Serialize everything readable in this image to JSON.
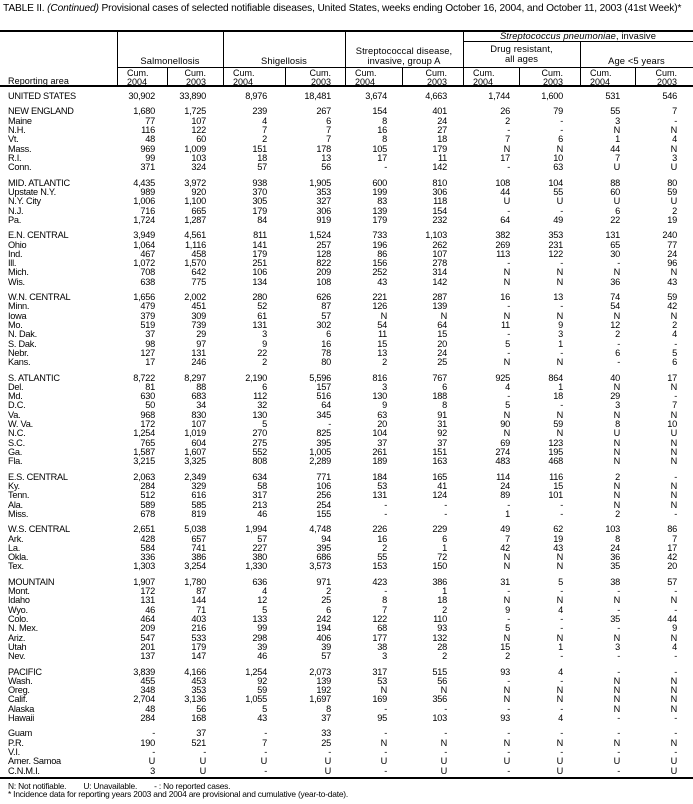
{
  "title": {
    "prefix": "TABLE II. ",
    "continued": "(Continued)",
    "text": " Provisional cases of selected notifiable diseases, United States, weeks ending October 16, 2004, and October 11, 2003 (41st Week)*"
  },
  "header": {
    "reporting_area": "Reporting area",
    "salmonellosis": "Salmonellosis",
    "shigellosis": "Shigellosis",
    "strep_a_line1": "Streptococcal disease,",
    "strep_a_line2": "invasive, group A",
    "spn_italic": "Streptococcus pneumoniae",
    "spn_rest": ", invasive",
    "drug_line1": "Drug resistant,",
    "drug_line2": "all ages",
    "age": "Age <5 years",
    "sub": [
      {
        "label": "Cum.",
        "year": "2004"
      },
      {
        "label": "Cum.",
        "year": "2003"
      },
      {
        "label": "Cum.",
        "year": "2004"
      },
      {
        "label": "Cum.",
        "year": "2003"
      },
      {
        "label": "Cum.",
        "year": "2004"
      },
      {
        "label": "Cum.",
        "year": "2003"
      },
      {
        "label": "Cum.",
        "year": "2004"
      },
      {
        "label": "Cum.",
        "year": "2003"
      },
      {
        "label": "Cum.",
        "year": "2004"
      },
      {
        "label": "Cum.",
        "year": "2003"
      }
    ]
  },
  "table": {
    "groups": [
      {
        "rows": [
          [
            "UNITED STATES",
            "30,902",
            "33,890",
            "8,976",
            "18,481",
            "3,674",
            "4,663",
            "1,744",
            "1,600",
            "531",
            "546"
          ]
        ]
      },
      {
        "rows": [
          [
            "NEW ENGLAND",
            "1,680",
            "1,725",
            "239",
            "267",
            "154",
            "401",
            "26",
            "79",
            "55",
            "7"
          ],
          [
            "Maine",
            "77",
            "107",
            "4",
            "6",
            "8",
            "24",
            "2",
            "-",
            "3",
            "-"
          ],
          [
            "N.H.",
            "116",
            "122",
            "7",
            "7",
            "16",
            "27",
            "-",
            "-",
            "N",
            "N"
          ],
          [
            "Vt.",
            "48",
            "60",
            "2",
            "7",
            "8",
            "18",
            "7",
            "6",
            "1",
            "4"
          ],
          [
            "Mass.",
            "969",
            "1,009",
            "151",
            "178",
            "105",
            "179",
            "N",
            "N",
            "44",
            "N"
          ],
          [
            "R.I.",
            "99",
            "103",
            "18",
            "13",
            "17",
            "11",
            "17",
            "10",
            "7",
            "3"
          ],
          [
            "Conn.",
            "371",
            "324",
            "57",
            "56",
            "-",
            "142",
            "-",
            "63",
            "U",
            "U"
          ]
        ]
      },
      {
        "rows": [
          [
            "MID. ATLANTIC",
            "4,435",
            "3,972",
            "938",
            "1,905",
            "600",
            "810",
            "108",
            "104",
            "88",
            "80"
          ],
          [
            "Upstate N.Y.",
            "989",
            "920",
            "370",
            "353",
            "199",
            "306",
            "44",
            "55",
            "60",
            "59"
          ],
          [
            "N.Y. City",
            "1,006",
            "1,100",
            "305",
            "327",
            "83",
            "118",
            "U",
            "U",
            "U",
            "U"
          ],
          [
            "N.J.",
            "716",
            "665",
            "179",
            "306",
            "139",
            "154",
            "-",
            "-",
            "6",
            "2"
          ],
          [
            "Pa.",
            "1,724",
            "1,287",
            "84",
            "919",
            "179",
            "232",
            "64",
            "49",
            "22",
            "19"
          ]
        ]
      },
      {
        "rows": [
          [
            "E.N. CENTRAL",
            "3,949",
            "4,561",
            "811",
            "1,524",
            "733",
            "1,103",
            "382",
            "353",
            "131",
            "240"
          ],
          [
            "Ohio",
            "1,064",
            "1,116",
            "141",
            "257",
            "196",
            "262",
            "269",
            "231",
            "65",
            "77"
          ],
          [
            "Ind.",
            "467",
            "458",
            "179",
            "128",
            "86",
            "107",
            "113",
            "122",
            "30",
            "24"
          ],
          [
            "Ill.",
            "1,072",
            "1,570",
            "251",
            "822",
            "156",
            "278",
            "-",
            "-",
            "-",
            "96"
          ],
          [
            "Mich.",
            "708",
            "642",
            "106",
            "209",
            "252",
            "314",
            "N",
            "N",
            "N",
            "N"
          ],
          [
            "Wis.",
            "638",
            "775",
            "134",
            "108",
            "43",
            "142",
            "N",
            "N",
            "36",
            "43"
          ]
        ]
      },
      {
        "rows": [
          [
            "W.N. CENTRAL",
            "1,656",
            "2,002",
            "280",
            "626",
            "221",
            "287",
            "16",
            "13",
            "74",
            "59"
          ],
          [
            "Minn.",
            "479",
            "451",
            "52",
            "87",
            "126",
            "139",
            "-",
            "-",
            "54",
            "42"
          ],
          [
            "Iowa",
            "379",
            "309",
            "61",
            "57",
            "N",
            "N",
            "N",
            "N",
            "N",
            "N"
          ],
          [
            "Mo.",
            "519",
            "739",
            "131",
            "302",
            "54",
            "64",
            "11",
            "9",
            "12",
            "2"
          ],
          [
            "N. Dak.",
            "37",
            "29",
            "3",
            "6",
            "11",
            "15",
            "-",
            "3",
            "2",
            "4"
          ],
          [
            "S. Dak.",
            "98",
            "97",
            "9",
            "16",
            "15",
            "20",
            "5",
            "1",
            "-",
            "-"
          ],
          [
            "Nebr.",
            "127",
            "131",
            "22",
            "78",
            "13",
            "24",
            "-",
            "-",
            "6",
            "5"
          ],
          [
            "Kans.",
            "17",
            "246",
            "2",
            "80",
            "2",
            "25",
            "N",
            "N",
            "-",
            "6"
          ]
        ]
      },
      {
        "rows": [
          [
            "S. ATLANTIC",
            "8,722",
            "8,297",
            "2,190",
            "5,596",
            "816",
            "767",
            "925",
            "864",
            "40",
            "17"
          ],
          [
            "Del.",
            "81",
            "88",
            "6",
            "157",
            "3",
            "6",
            "4",
            "1",
            "N",
            "N"
          ],
          [
            "Md.",
            "630",
            "683",
            "112",
            "516",
            "130",
            "188",
            "-",
            "18",
            "29",
            "-"
          ],
          [
            "D.C.",
            "50",
            "34",
            "32",
            "64",
            "9",
            "8",
            "5",
            "-",
            "3",
            "7"
          ],
          [
            "Va.",
            "968",
            "830",
            "130",
            "345",
            "63",
            "91",
            "N",
            "N",
            "N",
            "N"
          ],
          [
            "W. Va.",
            "172",
            "107",
            "5",
            "-",
            "20",
            "31",
            "90",
            "59",
            "8",
            "10"
          ],
          [
            "N.C.",
            "1,254",
            "1,019",
            "270",
            "825",
            "104",
            "92",
            "N",
            "N",
            "U",
            "U"
          ],
          [
            "S.C.",
            "765",
            "604",
            "275",
            "395",
            "37",
            "37",
            "69",
            "123",
            "N",
            "N"
          ],
          [
            "Ga.",
            "1,587",
            "1,607",
            "552",
            "1,005",
            "261",
            "151",
            "274",
            "195",
            "N",
            "N"
          ],
          [
            "Fla.",
            "3,215",
            "3,325",
            "808",
            "2,289",
            "189",
            "163",
            "483",
            "468",
            "N",
            "N"
          ]
        ]
      },
      {
        "rows": [
          [
            "E.S. CENTRAL",
            "2,063",
            "2,349",
            "634",
            "771",
            "184",
            "165",
            "114",
            "116",
            "2",
            "-"
          ],
          [
            "Ky.",
            "284",
            "329",
            "58",
            "106",
            "53",
            "41",
            "24",
            "15",
            "N",
            "N"
          ],
          [
            "Tenn.",
            "512",
            "616",
            "317",
            "256",
            "131",
            "124",
            "89",
            "101",
            "N",
            "N"
          ],
          [
            "Ala.",
            "589",
            "585",
            "213",
            "254",
            "-",
            "-",
            "-",
            "-",
            "N",
            "N"
          ],
          [
            "Miss.",
            "678",
            "819",
            "46",
            "155",
            "-",
            "-",
            "1",
            "-",
            "2",
            "-"
          ]
        ]
      },
      {
        "rows": [
          [
            "W.S. CENTRAL",
            "2,651",
            "5,038",
            "1,994",
            "4,748",
            "226",
            "229",
            "49",
            "62",
            "103",
            "86"
          ],
          [
            "Ark.",
            "428",
            "657",
            "57",
            "94",
            "16",
            "6",
            "7",
            "19",
            "8",
            "7"
          ],
          [
            "La.",
            "584",
            "741",
            "227",
            "395",
            "2",
            "1",
            "42",
            "43",
            "24",
            "17"
          ],
          [
            "Okla.",
            "336",
            "386",
            "380",
            "686",
            "55",
            "72",
            "N",
            "N",
            "36",
            "42"
          ],
          [
            "Tex.",
            "1,303",
            "3,254",
            "1,330",
            "3,573",
            "153",
            "150",
            "N",
            "N",
            "35",
            "20"
          ]
        ]
      },
      {
        "rows": [
          [
            "MOUNTAIN",
            "1,907",
            "1,780",
            "636",
            "971",
            "423",
            "386",
            "31",
            "5",
            "38",
            "57"
          ],
          [
            "Mont.",
            "172",
            "87",
            "4",
            "2",
            "-",
            "1",
            "-",
            "-",
            "-",
            "-"
          ],
          [
            "Idaho",
            "131",
            "144",
            "12",
            "25",
            "8",
            "18",
            "N",
            "N",
            "N",
            "N"
          ],
          [
            "Wyo.",
            "46",
            "71",
            "5",
            "6",
            "7",
            "2",
            "9",
            "4",
            "-",
            "-"
          ],
          [
            "Colo.",
            "464",
            "403",
            "133",
            "242",
            "122",
            "110",
            "-",
            "-",
            "35",
            "44"
          ],
          [
            "N. Mex.",
            "209",
            "216",
            "99",
            "194",
            "68",
            "93",
            "5",
            "-",
            "-",
            "9"
          ],
          [
            "Ariz.",
            "547",
            "533",
            "298",
            "406",
            "177",
            "132",
            "N",
            "N",
            "N",
            "N"
          ],
          [
            "Utah",
            "201",
            "179",
            "39",
            "39",
            "38",
            "28",
            "15",
            "1",
            "3",
            "4"
          ],
          [
            "Nev.",
            "137",
            "147",
            "46",
            "57",
            "3",
            "2",
            "2",
            "-",
            "-",
            "-"
          ]
        ]
      },
      {
        "rows": [
          [
            "PACIFIC",
            "3,839",
            "4,166",
            "1,254",
            "2,073",
            "317",
            "515",
            "93",
            "4",
            "-",
            "-"
          ],
          [
            "Wash.",
            "455",
            "453",
            "92",
            "139",
            "53",
            "56",
            "-",
            "-",
            "N",
            "N"
          ],
          [
            "Oreg.",
            "348",
            "353",
            "59",
            "192",
            "N",
            "N",
            "N",
            "N",
            "N",
            "N"
          ],
          [
            "Calif.",
            "2,704",
            "3,136",
            "1,055",
            "1,697",
            "169",
            "356",
            "N",
            "N",
            "N",
            "N"
          ],
          [
            "Alaska",
            "48",
            "56",
            "5",
            "8",
            "-",
            "-",
            "-",
            "-",
            "N",
            "N"
          ],
          [
            "Hawaii",
            "284",
            "168",
            "43",
            "37",
            "95",
            "103",
            "93",
            "4",
            "-",
            "-"
          ]
        ]
      },
      {
        "rows": [
          [
            "Guam",
            "-",
            "37",
            "-",
            "33",
            "-",
            "-",
            "-",
            "-",
            "-",
            "-"
          ],
          [
            "P.R.",
            "190",
            "521",
            "7",
            "25",
            "N",
            "N",
            "N",
            "N",
            "N",
            "N"
          ],
          [
            "V.I.",
            "-",
            "-",
            "-",
            "-",
            "-",
            "-",
            "-",
            "-",
            "-",
            "-"
          ],
          [
            "Amer. Samoa",
            "U",
            "U",
            "U",
            "U",
            "U",
            "U",
            "U",
            "U",
            "U",
            "U"
          ],
          [
            "C.N.M.I.",
            "3",
            "U",
            "-",
            "U",
            "-",
            "U",
            "-",
            "U",
            "-",
            "U"
          ]
        ]
      }
    ]
  },
  "footer": {
    "legend": "N: Not notifiable.        U: Unavailable.        - : No reported cases.",
    "note": "* Incidence data for reporting years 2003 and 2004 are provisional and cumulative (year-to-date)."
  }
}
